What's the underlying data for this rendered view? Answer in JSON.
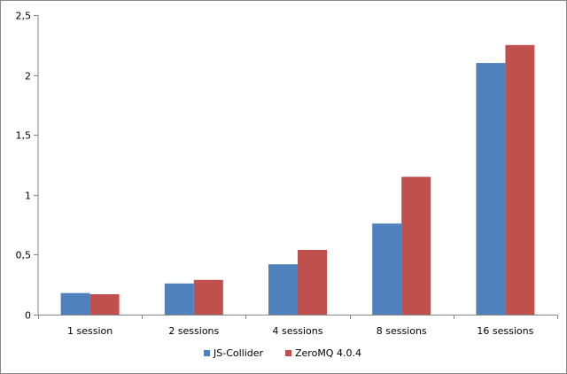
{
  "chart_data": {
    "type": "bar",
    "categories": [
      "1 session",
      "2 sessions",
      "4 sessions",
      "8 sessions",
      "16 sessions"
    ],
    "series": [
      {
        "name": "JS-Collider",
        "values": [
          0.18,
          0.26,
          0.42,
          0.76,
          2.1
        ],
        "color": "#4F81BD"
      },
      {
        "name": "ZeroMQ 4.0.4",
        "values": [
          0.17,
          0.29,
          0.54,
          1.15,
          2.25
        ],
        "color": "#C0504D"
      }
    ],
    "yticks": [
      0,
      0.5,
      1,
      1.5,
      2,
      2.5
    ],
    "ytick_labels": [
      "0",
      "0,5",
      "1",
      "1,5",
      "2",
      "2,5"
    ],
    "ylim": [
      0,
      2.5
    ],
    "grid": false,
    "legend_position": "bottom"
  }
}
